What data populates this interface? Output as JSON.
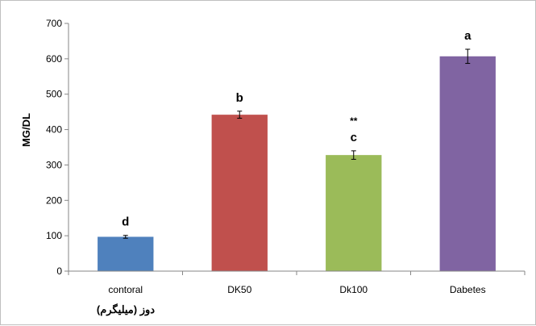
{
  "chart_data": {
    "type": "bar",
    "categories": [
      "contoral",
      "DK50",
      "Dk100",
      "Dabetes"
    ],
    "values": [
      97,
      442,
      328,
      607
    ],
    "errors": [
      4,
      10,
      12,
      20
    ],
    "data_labels": [
      "d",
      "b",
      "c",
      "a"
    ],
    "extra_marks": [
      "",
      "",
      "**",
      ""
    ],
    "colors": [
      "#4f81bd",
      "#c0504d",
      "#9bbb59",
      "#8064a2"
    ],
    "ylabel": "MG/DL",
    "xlabel": "دوز (میلیگرم)",
    "ylim": [
      0,
      700
    ],
    "yticks": [
      0,
      100,
      200,
      300,
      400,
      500,
      600,
      700
    ],
    "grid": false
  }
}
